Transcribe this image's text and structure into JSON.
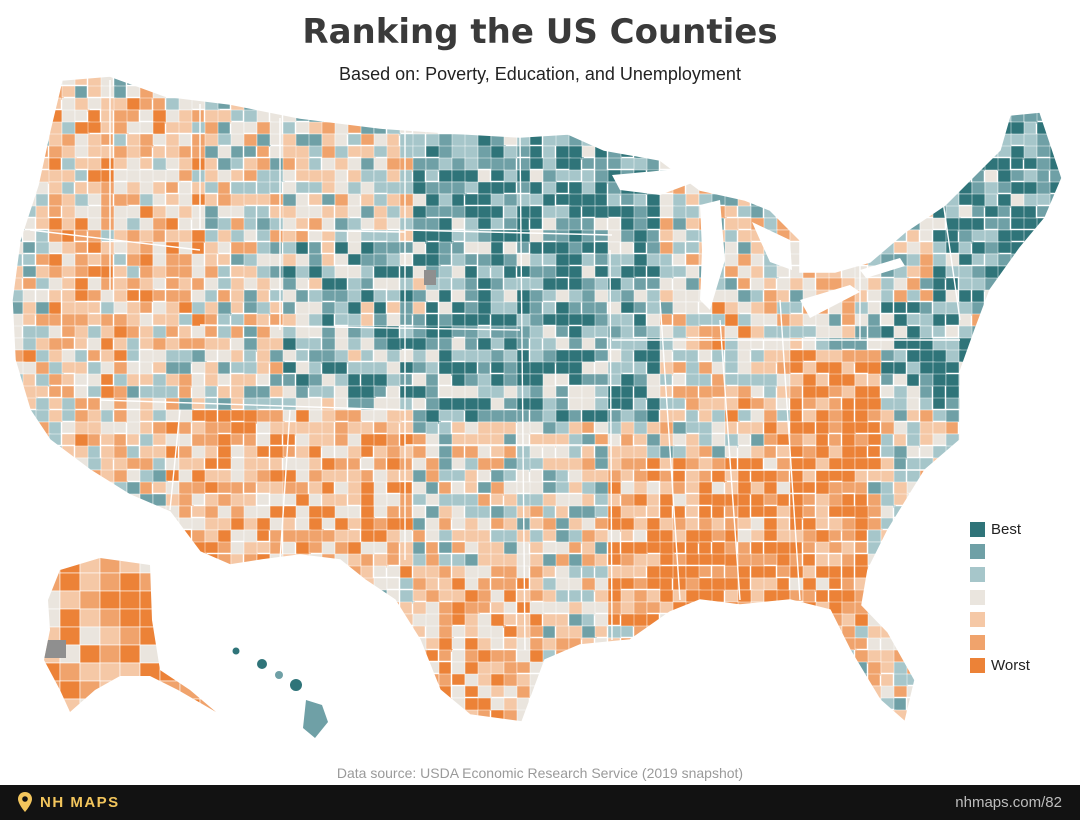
{
  "title": "Ranking the US Counties",
  "subtitle": "Based on: Poverty, Education, and Unemployment",
  "legend": {
    "items": [
      {
        "label": "Best",
        "color": "#2f7479"
      },
      {
        "label": "",
        "color": "#6fa0a6"
      },
      {
        "label": "",
        "color": "#a6c6ca"
      },
      {
        "label": "",
        "color": "#eae5de"
      },
      {
        "label": "",
        "color": "#f5c8a6"
      },
      {
        "label": "",
        "color": "#f0a36c"
      },
      {
        "label": "Worst",
        "color": "#ec8237"
      }
    ]
  },
  "no_data_color": "#8f8f8f",
  "source": "Data source: USDA Economic Research Service (2019 snapshot)",
  "footer": {
    "brand": "NH MAPS",
    "brand_icon": "map-pin-icon",
    "url": "nhmaps.com/82"
  }
}
